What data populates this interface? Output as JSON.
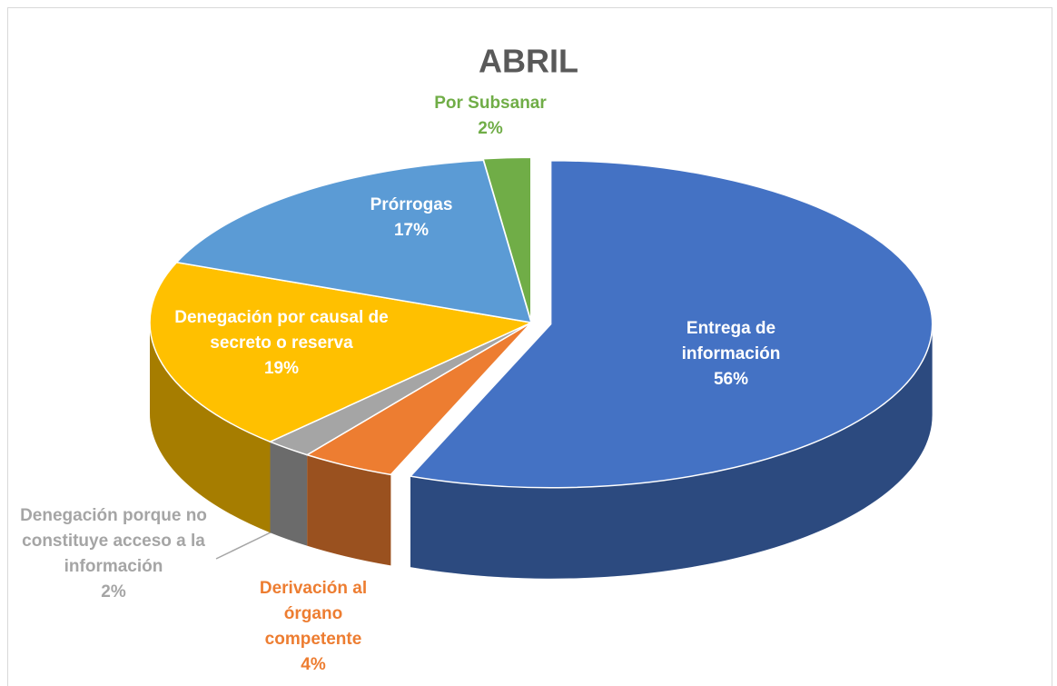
{
  "chart_data": {
    "type": "pie",
    "title": "ABRIL",
    "categories": [
      "Entrega de información",
      "Derivación al órgano competente",
      "Denegación porque no constituye acceso a la información",
      "Denegación por causal de secreto o reserva",
      "Prórrogas",
      "Por Subsanar"
    ],
    "values": [
      56,
      4,
      2,
      19,
      17,
      2
    ],
    "value_labels": [
      "56%",
      "4%",
      "2%",
      "19%",
      "17%",
      "2%"
    ],
    "colors": [
      "#4472c4",
      "#ed7d31",
      "#a5a5a5",
      "#ffc000",
      "#5b9bd5",
      "#70ad47"
    ]
  }
}
